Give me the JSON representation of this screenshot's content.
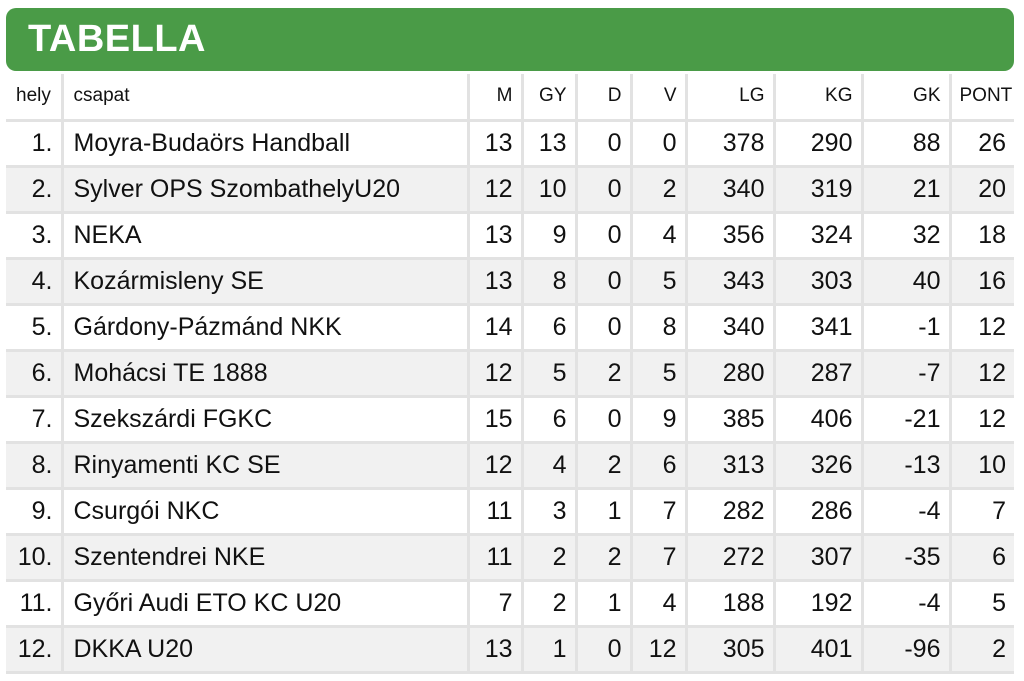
{
  "title": "TABELLA",
  "colors": {
    "banner": "#4a9b47",
    "stripe": "#f1f1f1",
    "grid": "#e2e2e2"
  },
  "headers": {
    "hely": "hely",
    "csapat": "csapat",
    "m": "M",
    "gy": "GY",
    "d": "D",
    "v": "V",
    "lg": "LG",
    "kg": "KG",
    "gk": "GK",
    "pont": "PONT"
  },
  "rows": [
    {
      "hely": "1.",
      "csapat": "Moyra-Budaörs Handball",
      "m": "13",
      "gy": "13",
      "d": "0",
      "v": "0",
      "lg": "378",
      "kg": "290",
      "gk": "88",
      "pont": "26"
    },
    {
      "hely": "2.",
      "csapat": "Sylver OPS SzombathelyU20",
      "m": "12",
      "gy": "10",
      "d": "0",
      "v": "2",
      "lg": "340",
      "kg": "319",
      "gk": "21",
      "pont": "20"
    },
    {
      "hely": "3.",
      "csapat": "NEKA",
      "m": "13",
      "gy": "9",
      "d": "0",
      "v": "4",
      "lg": "356",
      "kg": "324",
      "gk": "32",
      "pont": "18"
    },
    {
      "hely": "4.",
      "csapat": "Kozármisleny SE",
      "m": "13",
      "gy": "8",
      "d": "0",
      "v": "5",
      "lg": "343",
      "kg": "303",
      "gk": "40",
      "pont": "16"
    },
    {
      "hely": "5.",
      "csapat": "Gárdony-Pázmánd NKK",
      "m": "14",
      "gy": "6",
      "d": "0",
      "v": "8",
      "lg": "340",
      "kg": "341",
      "gk": "-1",
      "pont": "12"
    },
    {
      "hely": "6.",
      "csapat": "Mohácsi TE 1888",
      "m": "12",
      "gy": "5",
      "d": "2",
      "v": "5",
      "lg": "280",
      "kg": "287",
      "gk": "-7",
      "pont": "12"
    },
    {
      "hely": "7.",
      "csapat": "Szekszárdi FGKC",
      "m": "15",
      "gy": "6",
      "d": "0",
      "v": "9",
      "lg": "385",
      "kg": "406",
      "gk": "-21",
      "pont": "12"
    },
    {
      "hely": "8.",
      "csapat": "Rinyamenti KC SE",
      "m": "12",
      "gy": "4",
      "d": "2",
      "v": "6",
      "lg": "313",
      "kg": "326",
      "gk": "-13",
      "pont": "10"
    },
    {
      "hely": "9.",
      "csapat": "Csurgói NKC",
      "m": "11",
      "gy": "3",
      "d": "1",
      "v": "7",
      "lg": "282",
      "kg": "286",
      "gk": "-4",
      "pont": "7"
    },
    {
      "hely": "10.",
      "csapat": "Szentendrei NKE",
      "m": "11",
      "gy": "2",
      "d": "2",
      "v": "7",
      "lg": "272",
      "kg": "307",
      "gk": "-35",
      "pont": "6"
    },
    {
      "hely": "11.",
      "csapat": "Győri Audi ETO KC U20",
      "m": "7",
      "gy": "2",
      "d": "1",
      "v": "4",
      "lg": "188",
      "kg": "192",
      "gk": "-4",
      "pont": "5"
    },
    {
      "hely": "12.",
      "csapat": "DKKA U20",
      "m": "13",
      "gy": "1",
      "d": "0",
      "v": "12",
      "lg": "305",
      "kg": "401",
      "gk": "-96",
      "pont": "2"
    }
  ]
}
